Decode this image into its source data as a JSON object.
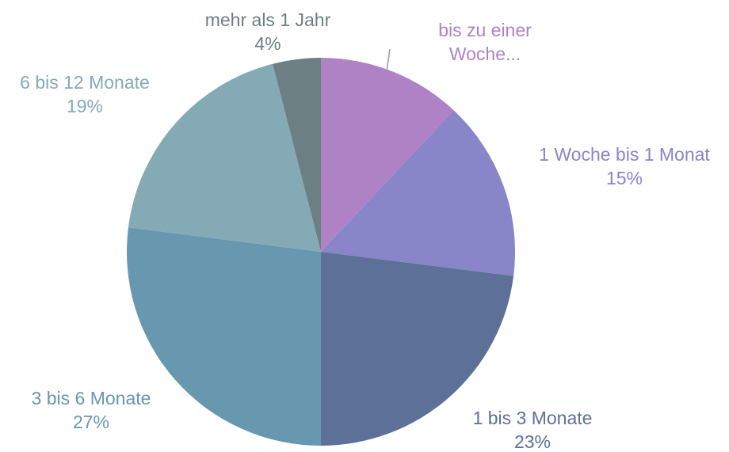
{
  "chart_data": {
    "type": "pie",
    "categories": [
      "bis zu einer Woche...",
      "1 Woche bis 1 Monat",
      "1 bis 3 Monate",
      "3 bis 6 Monate",
      "6 bis 12 Monate",
      "mehr als 1 Jahr"
    ],
    "values": [
      12,
      15,
      23,
      27,
      19,
      4
    ],
    "value_labels": [
      null,
      "15%",
      "23%",
      "27%",
      "19%",
      "4%"
    ],
    "colors": [
      "#ae82c5",
      "#8885c8",
      "#5d7097",
      "#6897b0",
      "#84aab6",
      "#6c7f83"
    ]
  }
}
